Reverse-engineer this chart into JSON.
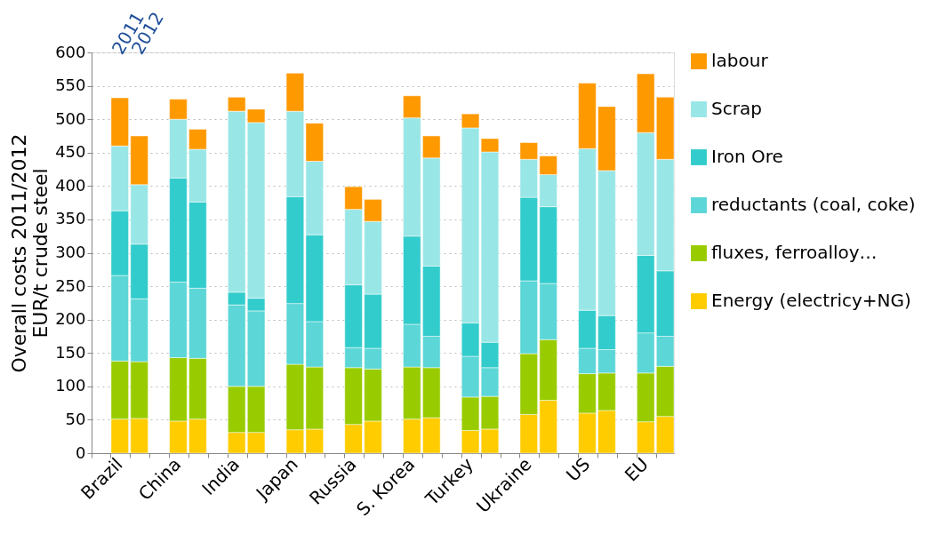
{
  "chart_data": {
    "type": "bar",
    "stacked": true,
    "ylabel": "Overall costs 2011/2012\nEUR/t crude steel",
    "categories": [
      "Brazil",
      null,
      "China",
      null,
      "India",
      null,
      "Japan",
      null,
      "Russia",
      null,
      "S. Korea",
      null,
      "Turkey",
      null,
      "Ukraine",
      null,
      "US",
      null,
      "EU",
      null
    ],
    "series": [
      {
        "name": "Energy (electricy+NG)",
        "color": "#ffcc00",
        "values": [
          51,
          52,
          48,
          51,
          31,
          31,
          35,
          36,
          43,
          48,
          51,
          53,
          34,
          36,
          58,
          79,
          60,
          64,
          47,
          55
        ]
      },
      {
        "name": "fluxes, ferroalloy…",
        "color": "#99cc00",
        "values": [
          87,
          85,
          95,
          91,
          69,
          69,
          98,
          93,
          85,
          78,
          78,
          75,
          50,
          49,
          91,
          91,
          59,
          56,
          73,
          75
        ]
      },
      {
        "name": "reductants (coal, coke)",
        "color": "#5cd6d6",
        "values": [
          128,
          94,
          113,
          105,
          122,
          113,
          91,
          68,
          30,
          31,
          64,
          47,
          61,
          43,
          109,
          84,
          38,
          35,
          60,
          45
        ]
      },
      {
        "name": "Iron Ore",
        "color": "#33cccc",
        "values": [
          97,
          82,
          156,
          129,
          19,
          19,
          160,
          130,
          94,
          81,
          132,
          105,
          50,
          38,
          125,
          115,
          57,
          51,
          116,
          98
        ]
      },
      {
        "name": "Scrap",
        "color": "#99e6e6",
        "values": [
          97,
          89,
          88,
          79,
          271,
          263,
          128,
          110,
          113,
          109,
          177,
          162,
          292,
          285,
          57,
          48,
          242,
          217,
          184,
          167
        ]
      },
      {
        "name": "labour",
        "color": "#ff9900",
        "values": [
          72,
          73,
          30,
          30,
          21,
          20,
          57,
          57,
          34,
          33,
          33,
          33,
          21,
          20,
          25,
          28,
          98,
          96,
          88,
          93
        ]
      }
    ],
    "ylim": [
      0,
      600
    ],
    "yticks": [
      0,
      50,
      100,
      150,
      200,
      250,
      300,
      350,
      400,
      450,
      500,
      550,
      600
    ],
    "grid": "y",
    "legend": "right",
    "annotations": [
      "2011",
      "2012"
    ]
  }
}
